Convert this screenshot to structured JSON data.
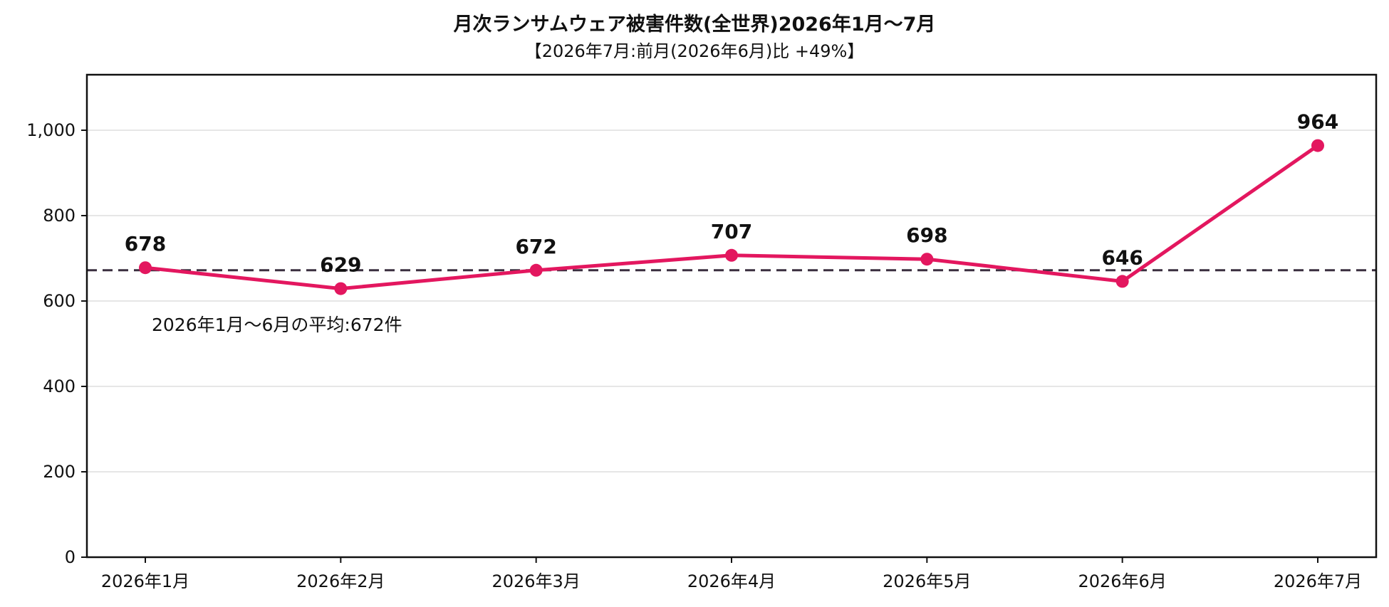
{
  "chart_data": {
    "type": "line",
    "title": "月次ランサムウェア被害件数(全世界)2026年1月〜7月",
    "subtitle": "【2026年7月:前月(2026年6月)比 +49%】",
    "xlabel": "",
    "ylabel": "",
    "categories": [
      "2026年1月",
      "2026年2月",
      "2026年3月",
      "2026年4月",
      "2026年5月",
      "2026年6月",
      "2026年7月"
    ],
    "series": [
      {
        "values": [
          678,
          629,
          672,
          707,
          698,
          646,
          964
        ],
        "data_labels": [
          "678",
          "629",
          "672",
          "707",
          "698",
          "646",
          "964"
        ],
        "color": "#e3175f"
      }
    ],
    "ylim": [
      0,
      1130
    ],
    "yticks": [
      0,
      200,
      400,
      600,
      800,
      1000
    ],
    "ytick_labels": [
      "0",
      "200",
      "400",
      "600",
      "800",
      "1,000"
    ],
    "grid": "horizontal",
    "reference_line": {
      "value": 672,
      "style": "dashed",
      "color": "#3a2f3f",
      "label": "2026年1月〜6月の平均:672件"
    }
  }
}
